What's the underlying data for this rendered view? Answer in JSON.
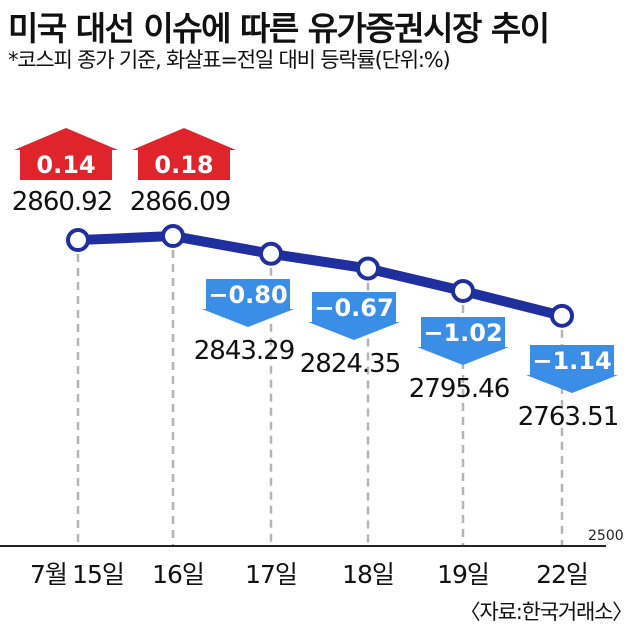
{
  "title": "미국 대선 이슈에 따른 유가증권시장 추이",
  "subtitle": "*코스피 종가 기준, 화살표=전일 대비 등락률(단위:%)",
  "source": "〈자료:한국거래소〉",
  "colors": {
    "line": "#1f2f9e",
    "up": "#e0242b",
    "down": "#3a8ee6",
    "grid": "#b5b5b5"
  },
  "chart_data": {
    "type": "line",
    "title": "미국 대선 이슈에 따른 유가증권시장 추이",
    "categories": [
      "7월 15일",
      "16일",
      "17일",
      "18일",
      "19일",
      "22일"
    ],
    "tick_labels": [
      "7월",
      "15일",
      "16일",
      "17일",
      "18일",
      "19일",
      "22일"
    ],
    "values": [
      2860.92,
      2866.09,
      2843.29,
      2824.35,
      2795.46,
      2763.51
    ],
    "changes_pct": [
      0.14,
      0.18,
      -0.8,
      -0.67,
      -1.02,
      -1.14
    ],
    "value_labels": [
      "2860.92",
      "2866.09",
      "2843.29",
      "2824.35",
      "2795.46",
      "2763.51"
    ],
    "change_labels": [
      "0.14",
      "0.18",
      "−0.80",
      "−0.67",
      "−1.02",
      "−1.14"
    ],
    "baseline_label": "2500",
    "ylim": [
      2500,
      2880
    ],
    "grid": "vertical dashed",
    "legend": "none"
  }
}
